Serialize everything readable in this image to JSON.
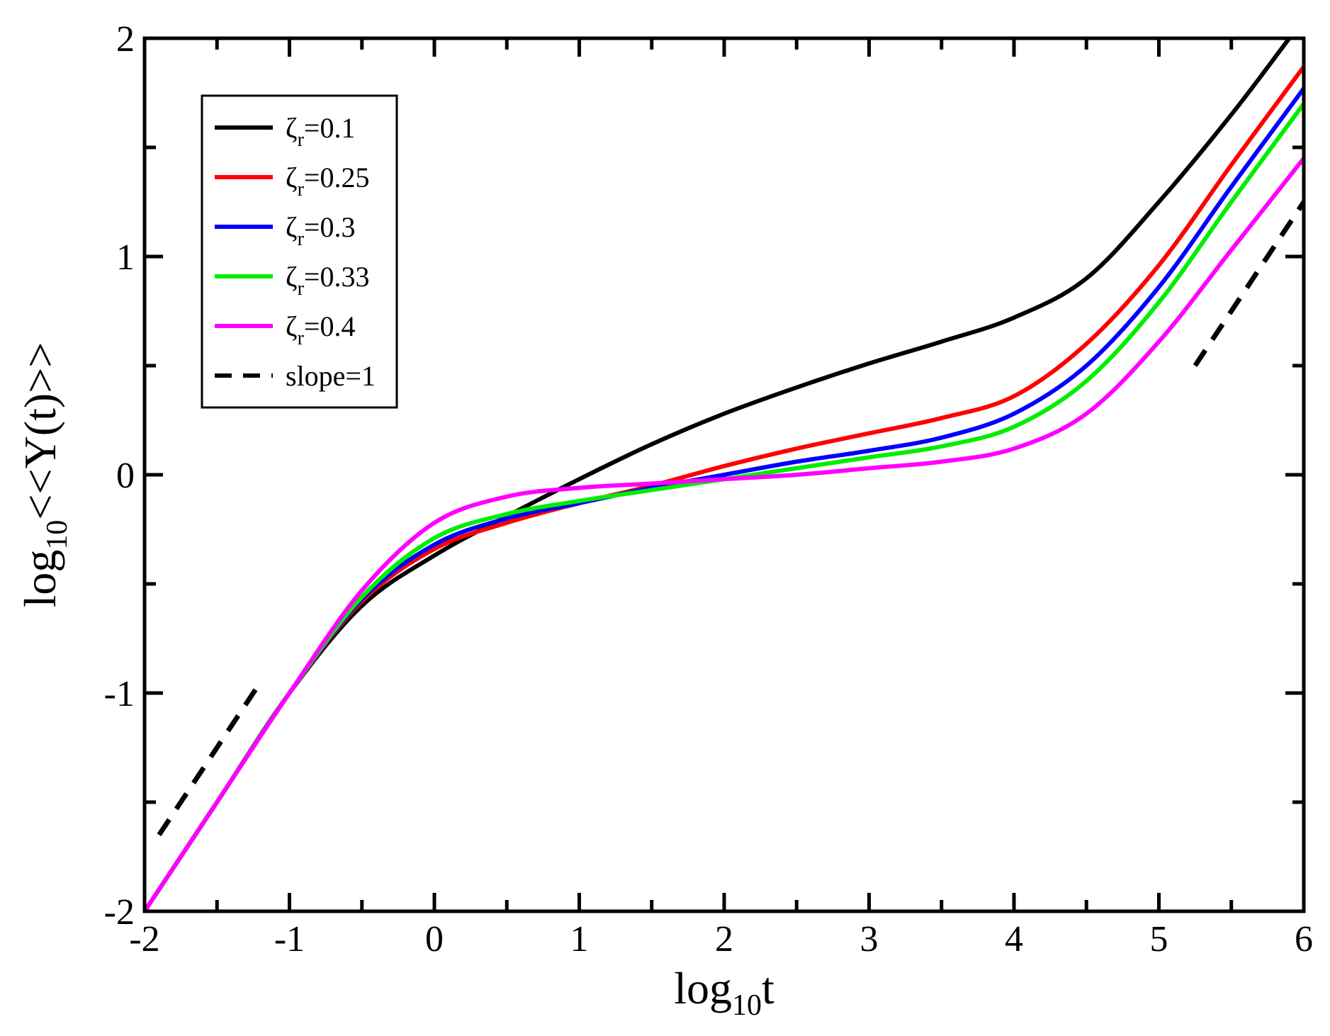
{
  "chart_data": {
    "type": "line",
    "title": "",
    "xlabel": {
      "base": "log",
      "sub": "10",
      "rest": "t"
    },
    "ylabel": {
      "base": "log",
      "sub": "10",
      "rest": "<<Y(t)>>"
    },
    "xlim": [
      -2,
      6
    ],
    "ylim": [
      -2,
      2
    ],
    "x_ticks": [
      -2,
      -1,
      0,
      1,
      2,
      3,
      4,
      5,
      6
    ],
    "x_tick_labels": [
      "-2",
      "-1",
      "0",
      "1",
      "2",
      "3",
      "4",
      "5",
      "6"
    ],
    "y_ticks": [
      -2,
      -1,
      0,
      1,
      2
    ],
    "y_tick_labels": [
      "-2",
      "-1",
      "0",
      "1",
      "2"
    ],
    "grid": false,
    "legend_position": "top-left",
    "series": [
      {
        "name": "zeta-0.1",
        "label_symbol": "ζ",
        "label_sub": "r",
        "label_value": "=0.1",
        "color": "#000000",
        "dash": false,
        "x": [
          -2,
          -1.5,
          -1,
          -0.5,
          0,
          0.5,
          1,
          1.5,
          2,
          2.5,
          3,
          3.5,
          4,
          4.5,
          5,
          5.5,
          5.9
        ],
        "y": [
          -2,
          -1.5,
          -1.0,
          -0.6,
          -0.37,
          -0.19,
          -0.02,
          0.14,
          0.28,
          0.4,
          0.51,
          0.61,
          0.72,
          0.9,
          1.25,
          1.65,
          2.0
        ]
      },
      {
        "name": "zeta-0.25",
        "label_symbol": "ζ",
        "label_sub": "r",
        "label_value": "=0.25",
        "color": "#ff0000",
        "dash": false,
        "x": [
          -2,
          -1.5,
          -1,
          -0.5,
          0,
          0.5,
          1,
          1.5,
          2,
          2.5,
          3,
          3.5,
          4,
          4.5,
          5,
          5.5,
          6
        ],
        "y": [
          -2,
          -1.5,
          -1.0,
          -0.58,
          -0.34,
          -0.22,
          -0.13,
          -0.05,
          0.04,
          0.12,
          0.19,
          0.26,
          0.36,
          0.6,
          0.96,
          1.42,
          1.87
        ]
      },
      {
        "name": "zeta-0.3",
        "label_symbol": "ζ",
        "label_sub": "r",
        "label_value": "=0.3",
        "color": "#0000ff",
        "dash": false,
        "x": [
          -2,
          -1.5,
          -1,
          -0.5,
          0,
          0.5,
          1,
          1.5,
          2,
          2.5,
          3,
          3.5,
          4,
          4.5,
          5,
          5.5,
          6
        ],
        "y": [
          -2,
          -1.5,
          -1.0,
          -0.57,
          -0.32,
          -0.2,
          -0.13,
          -0.06,
          0.0,
          0.06,
          0.11,
          0.17,
          0.28,
          0.5,
          0.86,
          1.32,
          1.77
        ]
      },
      {
        "name": "zeta-0.33",
        "label_symbol": "ζ",
        "label_sub": "r",
        "label_value": "=0.33",
        "color": "#00ee00",
        "dash": false,
        "x": [
          -2,
          -1.5,
          -1,
          -0.5,
          0,
          0.5,
          1,
          1.5,
          2,
          2.5,
          3,
          3.5,
          4,
          4.5,
          5,
          5.5,
          6
        ],
        "y": [
          -2,
          -1.5,
          -1.0,
          -0.56,
          -0.29,
          -0.18,
          -0.12,
          -0.07,
          -0.02,
          0.03,
          0.08,
          0.13,
          0.22,
          0.43,
          0.79,
          1.25,
          1.7
        ]
      },
      {
        "name": "zeta-0.4",
        "label_symbol": "ζ",
        "label_sub": "r",
        "label_value": "=0.4",
        "color": "#ff00ff",
        "dash": false,
        "x": [
          -2,
          -1.5,
          -1,
          -0.5,
          0,
          0.5,
          1,
          1.5,
          2,
          2.5,
          3,
          3.5,
          4,
          4.5,
          5,
          5.5,
          6
        ],
        "y": [
          -2,
          -1.5,
          -1.0,
          -0.53,
          -0.22,
          -0.1,
          -0.06,
          -0.04,
          -0.02,
          0.0,
          0.03,
          0.06,
          0.12,
          0.28,
          0.61,
          1.03,
          1.45
        ]
      },
      {
        "name": "slope-1-left",
        "label": "slope=1",
        "color": "#000000",
        "dash": true,
        "x": [
          -1.9,
          -1.2
        ],
        "y": [
          -1.65,
          -0.95
        ]
      },
      {
        "name": "slope-1-right",
        "label": "slope=1",
        "color": "#000000",
        "dash": true,
        "x": [
          5.25,
          6
        ],
        "y": [
          0.5,
          1.25
        ]
      }
    ],
    "legend": [
      {
        "series": "zeta-0.1"
      },
      {
        "series": "zeta-0.25"
      },
      {
        "series": "zeta-0.3"
      },
      {
        "series": "zeta-0.33"
      },
      {
        "series": "zeta-0.4"
      },
      {
        "series": "slope-1-left",
        "text": "slope=1"
      }
    ]
  }
}
